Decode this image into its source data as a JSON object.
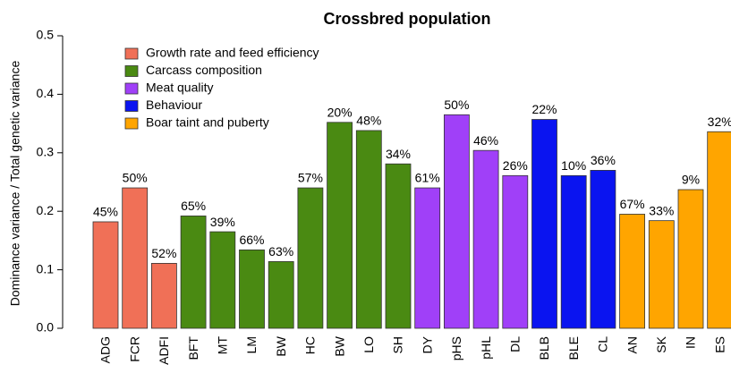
{
  "chart_data": {
    "type": "bar",
    "title": "Crossbred population",
    "y_label": "Dominance variance / Total genetic variance",
    "ylim": [
      0,
      0.5
    ],
    "yticks": [
      {
        "value": 0,
        "label": "0.0"
      },
      0.1,
      0.2,
      0.3,
      0.4,
      0.5
    ],
    "series": [
      {
        "name": "Growth rate and feed efficiency",
        "color": "#f07057",
        "categories": [
          "ADG",
          "FCR",
          "ADFI"
        ],
        "values": [
          0.182,
          0.24,
          0.111
        ],
        "annotations": [
          "45%",
          "50%",
          "52%"
        ]
      },
      {
        "name": "Carcass composition",
        "color": "#4a8a12",
        "categories": [
          "BFT",
          "MT",
          "LM",
          "BW",
          "HC",
          "BW",
          "LO",
          "SH"
        ],
        "values": [
          0.192,
          0.165,
          0.134,
          0.114,
          0.24,
          0.352,
          0.338,
          0.281
        ],
        "annotations": [
          "65%",
          "39%",
          "66%",
          "63%",
          "57%",
          "20%",
          "48%",
          "34%"
        ]
      },
      {
        "name": "Meat quality",
        "color": "#a040f8",
        "categories": [
          "DY",
          "pHS",
          "pHL",
          "DL"
        ],
        "values": [
          0.24,
          0.365,
          0.304,
          0.261
        ],
        "annotations": [
          "61%",
          "50%",
          "46%",
          "26%"
        ]
      },
      {
        "name": "Behaviour",
        "color": "#0a14f0",
        "categories": [
          "BLB",
          "BLE",
          "CL"
        ],
        "values": [
          0.357,
          0.261,
          0.27
        ],
        "annotations": [
          "22%",
          "10%",
          "36%"
        ]
      },
      {
        "name": "Boar taint and puberty",
        "color": "#ffa500",
        "categories": [
          "AN",
          "SK",
          "IN",
          "ES"
        ],
        "values": [
          0.195,
          0.184,
          0.237,
          0.336
        ],
        "annotations": [
          "67%",
          "33%",
          "9%",
          "32%"
        ]
      }
    ]
  }
}
